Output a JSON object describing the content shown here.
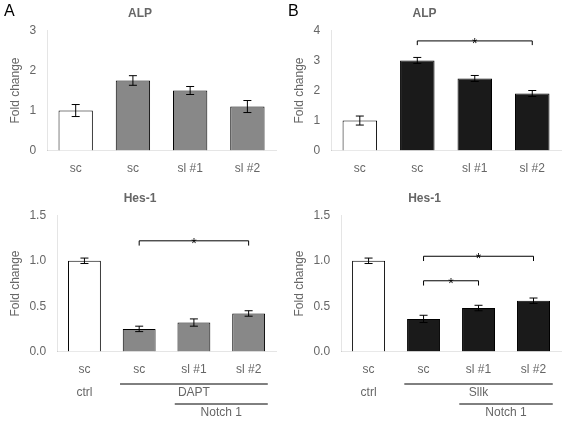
{
  "chart_data": [
    {
      "type": "bar",
      "title": "ALP",
      "panel_label": "A",
      "categories": [
        "sc",
        "sc",
        "sl #1",
        "sl #2"
      ],
      "values": [
        1.0,
        1.75,
        1.5,
        1.1
      ],
      "errors": [
        0.15,
        0.12,
        0.1,
        0.15
      ],
      "colors": [
        "white",
        "#888888",
        "#888888",
        "#888888"
      ],
      "ylabel": "Fold change",
      "ylim": [
        0,
        3
      ],
      "yticks": [
        0,
        1,
        2,
        3
      ],
      "grid": false
    },
    {
      "type": "bar",
      "title": "ALP",
      "panel_label": "B",
      "categories": [
        "sc",
        "sc",
        "sl #1",
        "sl #2"
      ],
      "values": [
        1.0,
        3.0,
        2.4,
        1.9
      ],
      "errors": [
        0.15,
        0.1,
        0.1,
        0.1
      ],
      "colors": [
        "white",
        "#1a1a1a",
        "#1a1a1a",
        "#1a1a1a"
      ],
      "ylabel": "Fold change",
      "ylim": [
        0,
        4
      ],
      "yticks": [
        0,
        1,
        2,
        3,
        4
      ],
      "grid": false,
      "annotations": [
        {
          "text": "*",
          "from": 1,
          "to": 3,
          "y": 3.65
        }
      ]
    },
    {
      "type": "bar",
      "title": "Hes-1",
      "categories": [
        "sc",
        "sc",
        "sl #1",
        "sl #2"
      ],
      "values": [
        1.0,
        0.25,
        0.32,
        0.42
      ],
      "errors": [
        0.03,
        0.03,
        0.04,
        0.03
      ],
      "colors": [
        "white",
        "#888888",
        "#888888",
        "#888888"
      ],
      "ylabel": "Fold change",
      "ylim": [
        0,
        1.5
      ],
      "yticks": [
        {
          "value": 0,
          "label": "0.0"
        },
        0.5,
        {
          "value": 1.0,
          "label": "1.0"
        },
        1.5
      ],
      "grid": false,
      "annotations": [
        {
          "text": "*",
          "from": 1,
          "to": 3,
          "y": 1.22
        }
      ],
      "group_labels": [
        {
          "label": "ctrl",
          "from": 0,
          "to": 0
        },
        {
          "label": "DAPT",
          "from": 1,
          "to": 3
        },
        {
          "label": "Notch 1",
          "from": 2,
          "to": 3
        }
      ]
    },
    {
      "type": "bar",
      "title": "Hes-1",
      "categories": [
        "sc",
        "sc",
        "sl #1",
        "sl #2"
      ],
      "values": [
        1.0,
        0.36,
        0.48,
        0.56
      ],
      "errors": [
        0.03,
        0.04,
        0.03,
        0.03
      ],
      "colors": [
        "white",
        "#1a1a1a",
        "#1a1a1a",
        "#1a1a1a"
      ],
      "ylabel": "Fold change",
      "ylim": [
        0,
        1.5
      ],
      "yticks": [
        {
          "value": 0,
          "label": "0.0"
        },
        0.5,
        {
          "value": 1.0,
          "label": "1.0"
        },
        1.5
      ],
      "grid": false,
      "annotations": [
        {
          "text": "*",
          "from": 1,
          "to": 2,
          "y": 0.78
        },
        {
          "text": "*",
          "from": 1,
          "to": 3,
          "y": 1.05
        }
      ],
      "group_labels": [
        {
          "label": "ctrl",
          "from": 0,
          "to": 0
        },
        {
          "label": "Sllk",
          "from": 1,
          "to": 3
        },
        {
          "label": "Notch 1",
          "from": 2,
          "to": 3
        }
      ]
    }
  ]
}
